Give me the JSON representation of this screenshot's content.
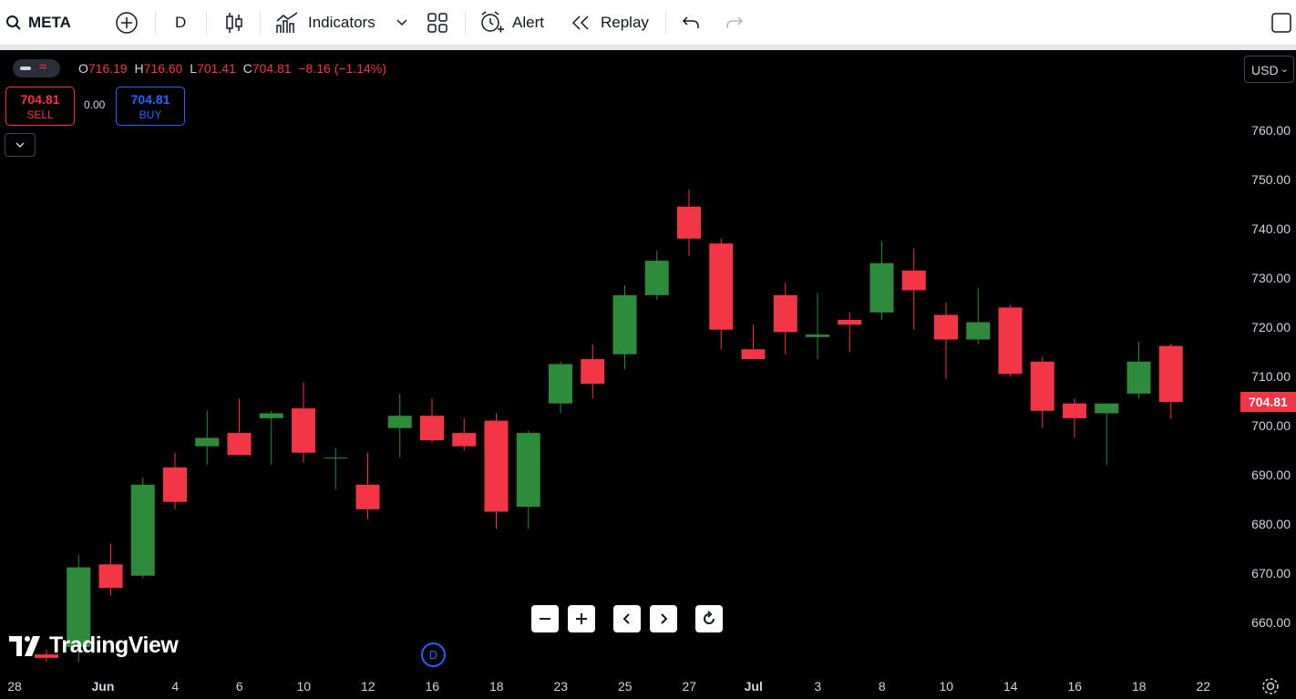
{
  "toolbar": {
    "symbol": "META",
    "interval": "D",
    "indicators_label": "Indicators",
    "alert_label": "Alert",
    "replay_label": "Replay"
  },
  "legend": {
    "open_key": "O",
    "open": "716.19",
    "high_key": "H",
    "high": "716.60",
    "low_key": "L",
    "low": "701.41",
    "close_key": "C",
    "close": "704.81",
    "change": "−8.16 (−1.14%)"
  },
  "trade": {
    "sell_price": "704.81",
    "sell_label": "SELL",
    "spread": "0.00",
    "buy_price": "704.81",
    "buy_label": "BUY"
  },
  "currency": "USD",
  "branding": "TradingView",
  "session_marker": "D",
  "last_price_label": "704.81",
  "colors": {
    "up": "#2e8b3c",
    "down": "#f23645",
    "buy": "#2962ff",
    "axis_text": "#d1d4dc"
  },
  "chart_data": {
    "type": "candlestick",
    "y_axis": {
      "ticks": [
        "760.00",
        "750.00",
        "740.00",
        "730.00",
        "720.00",
        "710.00",
        "700.00",
        "690.00",
        "680.00",
        "670.00",
        "660.00"
      ],
      "ylim": [
        652,
        767
      ]
    },
    "x_axis": {
      "ticks": [
        "28",
        "Jun",
        "4",
        "6",
        "10",
        "12",
        "16",
        "18",
        "23",
        "25",
        "27",
        "Jul",
        "3",
        "8",
        "10",
        "14",
        "16",
        "18",
        "22"
      ]
    },
    "candles": [
      {
        "o": 653.5,
        "h": 654.5,
        "l": 652.0,
        "c": 652.8
      },
      {
        "o": 655.0,
        "h": 673.8,
        "l": 652.0,
        "c": 671.2
      },
      {
        "o": 671.8,
        "h": 676.0,
        "l": 665.5,
        "c": 667.0
      },
      {
        "o": 669.5,
        "h": 689.5,
        "l": 669.0,
        "c": 688.0
      },
      {
        "o": 691.5,
        "h": 694.5,
        "l": 683.0,
        "c": 684.5
      },
      {
        "o": 695.8,
        "h": 703.0,
        "l": 692.0,
        "c": 697.5
      },
      {
        "o": 698.5,
        "h": 705.5,
        "l": 694.0,
        "c": 694.0
      },
      {
        "o": 701.5,
        "h": 703.0,
        "l": 692.0,
        "c": 702.5
      },
      {
        "o": 703.5,
        "h": 708.8,
        "l": 692.5,
        "c": 694.5
      },
      {
        "o": 693.5,
        "h": 695.5,
        "l": 687.0,
        "c": 693.5
      },
      {
        "o": 688.0,
        "h": 694.5,
        "l": 681.0,
        "c": 683.0
      },
      {
        "o": 699.5,
        "h": 706.5,
        "l": 693.5,
        "c": 702.0
      },
      {
        "o": 702.0,
        "h": 705.5,
        "l": 696.5,
        "c": 697.0
      },
      {
        "o": 698.5,
        "h": 701.5,
        "l": 695.0,
        "c": 695.8
      },
      {
        "o": 701.0,
        "h": 702.5,
        "l": 679.0,
        "c": 682.5
      },
      {
        "o": 683.5,
        "h": 699.0,
        "l": 679.0,
        "c": 698.5
      },
      {
        "o": 704.5,
        "h": 713.0,
        "l": 702.5,
        "c": 712.5
      },
      {
        "o": 713.5,
        "h": 716.5,
        "l": 705.5,
        "c": 708.5
      },
      {
        "o": 714.5,
        "h": 728.5,
        "l": 711.5,
        "c": 726.5
      },
      {
        "o": 726.5,
        "h": 735.5,
        "l": 725.5,
        "c": 733.5
      },
      {
        "o": 744.5,
        "h": 748.0,
        "l": 734.5,
        "c": 738.0
      },
      {
        "o": 737.0,
        "h": 738.0,
        "l": 715.5,
        "c": 719.5
      },
      {
        "o": 715.5,
        "h": 720.5,
        "l": 713.5,
        "c": 713.5
      },
      {
        "o": 726.5,
        "h": 729.0,
        "l": 714.5,
        "c": 719.0
      },
      {
        "o": 718.0,
        "h": 727.0,
        "l": 713.5,
        "c": 718.5
      },
      {
        "o": 721.5,
        "h": 723.0,
        "l": 715.0,
        "c": 720.5
      },
      {
        "o": 723.0,
        "h": 737.5,
        "l": 721.5,
        "c": 733.0
      },
      {
        "o": 731.5,
        "h": 736.0,
        "l": 719.5,
        "c": 727.5
      },
      {
        "o": 722.5,
        "h": 725.0,
        "l": 709.5,
        "c": 717.5
      },
      {
        "o": 717.5,
        "h": 728.0,
        "l": 716.5,
        "c": 721.0
      },
      {
        "o": 724.0,
        "h": 724.5,
        "l": 710.0,
        "c": 710.5
      },
      {
        "o": 713.0,
        "h": 714.0,
        "l": 699.5,
        "c": 703.0
      },
      {
        "o": 704.5,
        "h": 705.5,
        "l": 697.5,
        "c": 701.5
      },
      {
        "o": 702.5,
        "h": 704.5,
        "l": 692.0,
        "c": 704.5
      },
      {
        "o": 706.5,
        "h": 717.0,
        "l": 705.5,
        "c": 713.0
      },
      {
        "o": 716.19,
        "h": 716.6,
        "l": 701.41,
        "c": 704.81
      }
    ]
  }
}
